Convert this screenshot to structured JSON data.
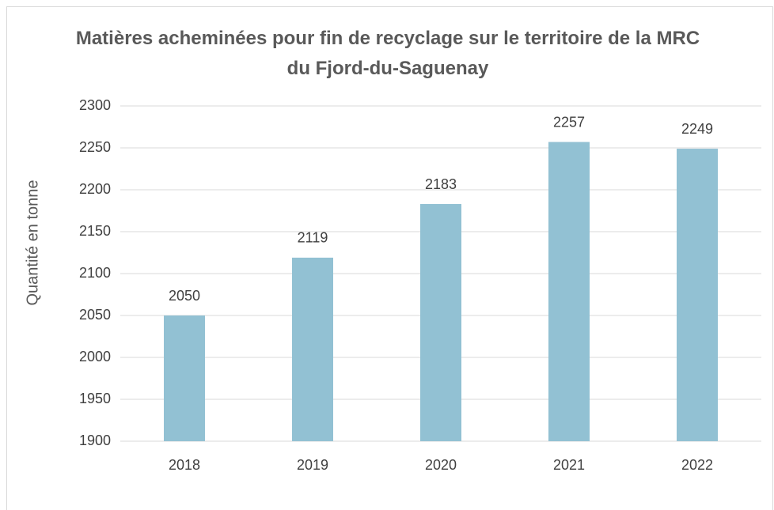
{
  "chart_data": {
    "type": "bar",
    "title": "Matières acheminées pour fin de recyclage sur le territoire de la MRC du Fjord-du-Saguenay",
    "y_label": "Quantité en tonne",
    "categories": [
      "2018",
      "2019",
      "2020",
      "2021",
      "2022"
    ],
    "values": [
      2050,
      2119,
      2183,
      2257,
      2249
    ],
    "color": "#92c1d3",
    "ylim": [
      1900,
      2300
    ],
    "yticks": [
      1900,
      1950,
      2000,
      2050,
      2100,
      2150,
      2200,
      2250,
      2300
    ],
    "grid": true,
    "data_labels": true
  }
}
